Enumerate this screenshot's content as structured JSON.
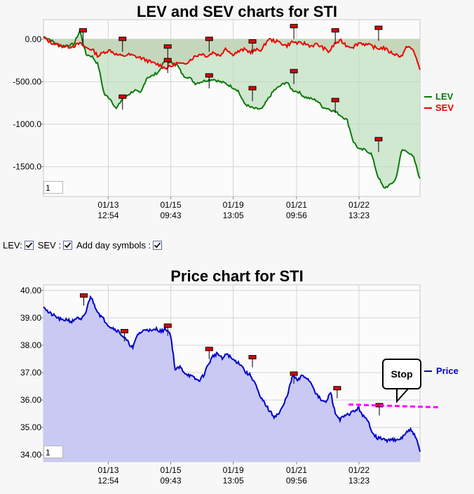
{
  "chart_data": [
    {
      "type": "area",
      "title": "LEV and SEV charts for STI",
      "yticks": [
        "0.00",
        "-500.00",
        "-1000.0",
        "-1500.0"
      ],
      "ylim": [
        -1850,
        230
      ],
      "x_tick_labels": [
        {
          "date": "01/13",
          "time": "12:54"
        },
        {
          "date": "01/15",
          "time": "09:43"
        },
        {
          "date": "01/19",
          "time": "13:05"
        },
        {
          "date": "01/21",
          "time": "09:56"
        },
        {
          "date": "01/22",
          "time": "13:23"
        }
      ],
      "legend": {
        "placement": "right",
        "entries": [
          "LEV",
          "SEV"
        ]
      },
      "grid": true,
      "series": [
        {
          "name": "LEV",
          "color": "#0a7a0a",
          "values": [
            30,
            0,
            -50,
            -80,
            -70,
            -60,
            100,
            -180,
            -200,
            -300,
            -650,
            -700,
            -820,
            -700,
            -650,
            -600,
            -640,
            -450,
            -430,
            -380,
            -250,
            -280,
            -300,
            -430,
            -450,
            -520,
            -500,
            -480,
            -470,
            -500,
            -520,
            -560,
            -600,
            -750,
            -800,
            -820,
            -820,
            -700,
            -600,
            -550,
            -500,
            -600,
            -620,
            -680,
            -700,
            -720,
            -800,
            -820,
            -850,
            -900,
            -950,
            -1200,
            -1300,
            -1300,
            -1350,
            -1600,
            -1750,
            -1720,
            -1650,
            -1300,
            -1320,
            -1400,
            -1650
          ]
        },
        {
          "name": "SEV",
          "color": "#ee0000",
          "values": [
            20,
            -30,
            -60,
            -80,
            -90,
            -80,
            -50,
            -100,
            -120,
            -200,
            -150,
            -130,
            -180,
            -200,
            -180,
            -200,
            -220,
            -250,
            -280,
            -300,
            -340,
            -320,
            -280,
            -300,
            -250,
            -200,
            -170,
            -200,
            -150,
            -200,
            -100,
            -180,
            -150,
            -120,
            -150,
            -130,
            -120,
            0,
            -20,
            -40,
            -80,
            -30,
            -50,
            -50,
            -80,
            -60,
            -100,
            -150,
            -50,
            -20,
            -80,
            -90,
            -40,
            -60,
            -80,
            -110,
            -100,
            -150,
            -180,
            -200,
            -70,
            -150,
            -350
          ]
        }
      ],
      "day_markers": [
        {
          "x": 0.105,
          "lev": 100
        },
        {
          "x": 0.21,
          "sev": 0
        },
        {
          "x": 0.21,
          "lev": -680
        },
        {
          "x": 0.33,
          "sev": -90
        },
        {
          "x": 0.33,
          "lev": -250
        },
        {
          "x": 0.44,
          "sev": 0
        },
        {
          "x": 0.44,
          "lev": -430
        },
        {
          "x": 0.555,
          "sev": -30
        },
        {
          "x": 0.555,
          "lev": -580
        },
        {
          "x": 0.665,
          "sev": 150
        },
        {
          "x": 0.665,
          "lev": -380
        },
        {
          "x": 0.775,
          "sev": 100
        },
        {
          "x": 0.775,
          "lev": -720
        },
        {
          "x": 0.89,
          "sev": 130
        },
        {
          "x": 0.89,
          "lev": -1180
        }
      ]
    },
    {
      "type": "area",
      "title": "Price chart for STI",
      "yticks": [
        "40.00",
        "39.00",
        "38.00",
        "37.00",
        "36.00",
        "35.00",
        "34.00"
      ],
      "ylim": [
        33.75,
        40.2
      ],
      "x_tick_labels": [
        {
          "date": "01/13",
          "time": "12:54"
        },
        {
          "date": "01/15",
          "time": "09:43"
        },
        {
          "date": "01/19",
          "time": "13:05"
        },
        {
          "date": "01/21",
          "time": "09:56"
        },
        {
          "date": "01/22",
          "time": "13:23"
        }
      ],
      "legend": {
        "placement": "right",
        "entries": [
          "Price"
        ]
      },
      "grid": true,
      "series": [
        {
          "name": "Price",
          "color": "#0000cc",
          "values": [
            39.45,
            39.2,
            39.1,
            39.0,
            38.9,
            38.95,
            38.85,
            39.0,
            38.9,
            39.2,
            39.8,
            39.4,
            39.1,
            38.9,
            38.7,
            38.6,
            38.5,
            38.3,
            38.1,
            37.9,
            38.4,
            38.5,
            38.6,
            38.5,
            38.6,
            38.5,
            38.6,
            38.4,
            37.1,
            37.2,
            37.0,
            36.9,
            36.8,
            36.7,
            36.9,
            37.3,
            37.6,
            37.7,
            37.5,
            37.7,
            37.5,
            37.4,
            37.3,
            37.0,
            36.9,
            36.6,
            36.1,
            35.9,
            35.6,
            35.4,
            35.5,
            35.8,
            36.3,
            36.9,
            36.7,
            36.9,
            36.8,
            36.6,
            36.2,
            36.0,
            35.9,
            36.3,
            35.5,
            35.3,
            35.4,
            35.5,
            35.6,
            35.7,
            35.4,
            35.2,
            34.8,
            34.6,
            34.6,
            34.5,
            34.6,
            34.5,
            34.6,
            34.8,
            34.9,
            34.7,
            34.1
          ]
        }
      ],
      "day_markers": [
        {
          "x": 0.107,
          "value": 39.8
        },
        {
          "x": 0.215,
          "value": 38.5
        },
        {
          "x": 0.33,
          "value": 38.7
        },
        {
          "x": 0.44,
          "value": 37.85
        },
        {
          "x": 0.555,
          "value": 37.55
        },
        {
          "x": 0.665,
          "value": 36.95
        },
        {
          "x": 0.78,
          "value": 36.42
        },
        {
          "x": 0.892,
          "value": 35.8
        }
      ],
      "stop_line": {
        "value": 35.76,
        "color": "#ff00ff",
        "x_start": 0.81,
        "x_end": 1.05
      },
      "stop_label": "Stop"
    }
  ],
  "controls": {
    "lev_label": "LEV:",
    "sev_label": "SEV :",
    "daysym_label": "Add day symbols :"
  },
  "inputs": {
    "top_value": "1",
    "bottom_value": "1"
  }
}
